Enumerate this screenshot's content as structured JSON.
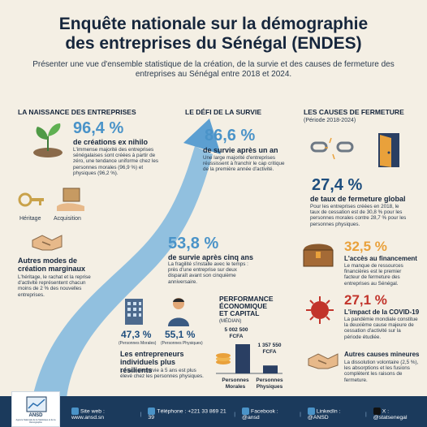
{
  "header": {
    "title_line1": "Enquête nationale sur la démographie",
    "title_line2": "des entreprises du Sénégal (ENDES)",
    "subtitle": "Présenter une vue d'ensemble statistique de la création, de la survie et des causes de fermeture des entreprises au Sénégal entre 2018 et 2024."
  },
  "naissance": {
    "heading": "LA NAISSANCE DES ENTREPRISES",
    "value": "96,4 %",
    "label": "de créations ex nihilo",
    "desc": "L'immense majorité des entreprises sénégalaises sont créées à partir de zéro, une tendance uniforme chez les personnes morales (96,9 %) et physiques (96,2 %).",
    "heritage": "Héritage",
    "acquisition": "Acquisition",
    "autres_label": "Autres modes de création marginaux",
    "autres_desc": "L'héritage, le rachat et la reprise d'activité représentent chacun moins de 2 % des nouvelles entreprises."
  },
  "survie": {
    "heading": "LE DÉFI DE LA SURVIE",
    "value1": "86,6 %",
    "label1": "de survie après un an",
    "desc1": "Une large majorité d'entreprises réussissent à franchir le cap critique de la première année d'activité.",
    "value2": "53,8 %",
    "label2": "de survie après cinq ans",
    "desc2": "La fragilité s'installe avec le temps : près d'une entreprise sur deux disparaît avant son cinquième anniversaire."
  },
  "resilience": {
    "value_morales": "47,3 %",
    "lbl_morales": "(Personnes Morales)",
    "value_physiques": "55,1 %",
    "lbl_physiques": "(Personnes Physiques)",
    "label": "Les entrepreneurs individuels plus résilients",
    "desc": "Le taux de survie à 5 ans est plus élevé chez les personnes physiques."
  },
  "performance": {
    "heading_line1": "PERFORMANCE",
    "heading_line2": "ÉCONOMIQUE",
    "heading_line3": "ET CAPITAL",
    "heading_sub": "(MÉDIAN)",
    "val_morales_line1": "5 002 500",
    "val_morales_line2": "FCFA",
    "val_physiques_line1": "1 357 550",
    "val_physiques_line2": "FCFA",
    "cat_morales_line1": "Personnes",
    "cat_morales_line2": "Morales",
    "cat_physiques_line1": "Personnes",
    "cat_physiques_line2": "Physiques",
    "chart_data": {
      "type": "bar",
      "categories": [
        "Personnes Morales",
        "Personnes Physiques"
      ],
      "values": [
        5002500,
        1357550
      ]
    }
  },
  "fermeture": {
    "heading": "LES CAUSES DE FERMETURE",
    "period": "(Période 2018-2024)",
    "value": "27,4 %",
    "label": "de taux de fermeture global",
    "desc": "Pour les entreprises créées en 2018, le taux de cessation est de 30,8 % pour les personnes morales contre 28,7 % pour les personnes physiques.",
    "fin_value": "32,5 %",
    "fin_label": "L'accès au financement",
    "fin_desc": "Le manque de ressources financières est le premier facteur de fermeture des entreprises au Sénégal.",
    "covid_value": "27,1 %",
    "covid_label": "L'impact de la COVID-19",
    "covid_desc": "La pandémie mondiale constitue la deuxième cause majeure de cessation d'activité sur la période étudiée.",
    "autres_label": "Autres causes mineures",
    "autres_desc": "La dissolution volontaire (2,5 %), les absorptions et les fusions complètent les raisons de fermeture."
  },
  "footer": {
    "logo": "ANSD",
    "logo_sub": "Agence Nationale de la Statistique et de la Démographie",
    "site": "Site web : www.ansd.sn",
    "phone": "Téléphone : +221 33 869 21 39",
    "facebook": "Facebook : @ansd",
    "linkedin": "LinkedIn : @ANSD",
    "x": "X : @statsenegal"
  },
  "colors": {
    "background": "#f4efe4",
    "accent_blue": "#4a93c8",
    "accent_orange": "#e9a13b",
    "accent_red": "#c2342b",
    "navy": "#1b3a5c"
  }
}
